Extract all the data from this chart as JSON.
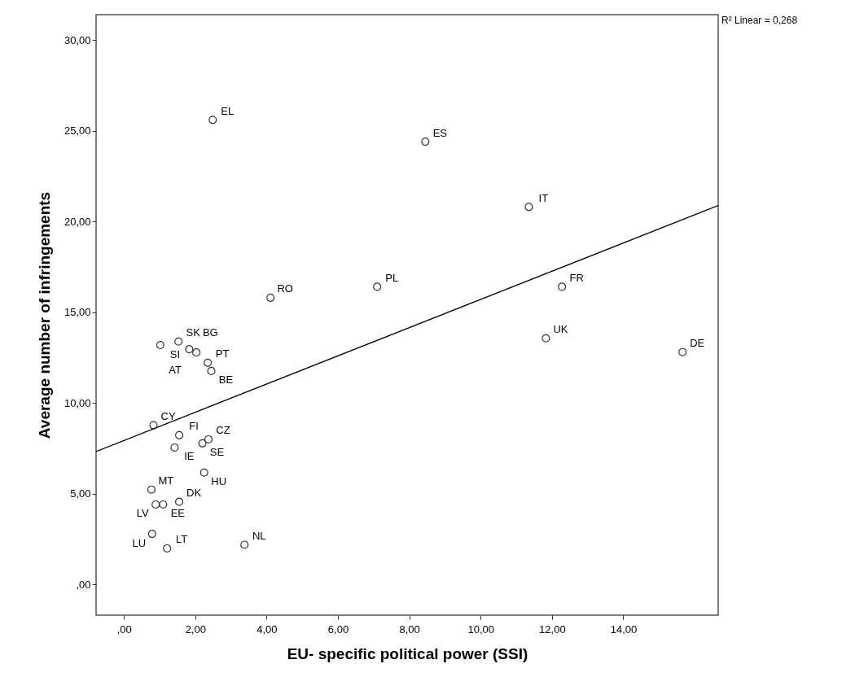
{
  "chart_data": {
    "type": "scatter",
    "xlabel": "EU- specific political power (SSI)",
    "ylabel": "Average number of infringements",
    "xlim": [
      -0.78,
      16.66
    ],
    "ylim": [
      -1.7,
      31.4
    ],
    "xticks": [
      {
        "value": 0,
        "label": ",00"
      },
      {
        "value": 2,
        "label": "2,00"
      },
      {
        "value": 4,
        "label": "4,00"
      },
      {
        "value": 6,
        "label": "6,00"
      },
      {
        "value": 8,
        "label": "8,00"
      },
      {
        "value": 10,
        "label": "10,00"
      },
      {
        "value": 12,
        "label": "12,00"
      },
      {
        "value": 14,
        "label": "14,00"
      }
    ],
    "yticks": [
      {
        "value": 0,
        "label": ",00"
      },
      {
        "value": 5,
        "label": "5,00"
      },
      {
        "value": 10,
        "label": "10,00"
      },
      {
        "value": 15,
        "label": "15,00"
      },
      {
        "value": 20,
        "label": "20,00"
      },
      {
        "value": 25,
        "label": "25,00"
      },
      {
        "value": 30,
        "label": "30,00"
      }
    ],
    "grid": false,
    "marker": "circle",
    "series": [
      {
        "type": "scatter",
        "color": "#333333",
        "x": [
          2.49,
          8.45,
          11.35,
          12.28,
          11.83,
          15.66,
          7.1,
          4.11,
          1.53,
          1.02,
          1.83,
          2.03,
          2.35,
          2.45,
          0.83,
          1.55,
          1.42,
          2.37,
          2.2,
          2.25,
          0.77,
          0.89,
          1.1,
          1.55,
          0.79,
          1.21,
          3.38
        ],
        "values": [
          25.6,
          24.4,
          20.8,
          16.4,
          13.56,
          12.8,
          16.4,
          15.8,
          13.38,
          13.19,
          12.96,
          12.78,
          12.21,
          11.76,
          8.77,
          8.22,
          7.54,
          7.99,
          7.77,
          6.16,
          5.22,
          4.4,
          4.4,
          4.55,
          2.78,
          1.98,
          2.18
        ]
      },
      {
        "type": "line",
        "color": "#000000",
        "x": [
          -0.78,
          16.66
        ],
        "values": [
          7.32,
          20.88
        ],
        "marker": "none"
      }
    ],
    "annotations": [
      {
        "text": "EL",
        "x": 2.49,
        "y": 25.6
      },
      {
        "text": "ES",
        "x": 8.45,
        "y": 24.4
      },
      {
        "text": "IT",
        "x": 11.35,
        "y": 20.8
      },
      {
        "text": "FR",
        "x": 12.28,
        "y": 16.4
      },
      {
        "text": "UK",
        "x": 11.83,
        "y": 13.56
      },
      {
        "text": "DE",
        "x": 15.66,
        "y": 12.8
      },
      {
        "text": "PL",
        "x": 7.1,
        "y": 16.4
      },
      {
        "text": "RO",
        "x": 4.11,
        "y": 15.8
      },
      {
        "text": "SK",
        "x": 1.53,
        "y": 13.38
      },
      {
        "text": "SI",
        "x": 1.02,
        "y": 13.19
      },
      {
        "text": "BG",
        "x": 1.83,
        "y": 12.96
      },
      {
        "text": "AT",
        "x": 2.03,
        "y": 12.78
      },
      {
        "text": "PT",
        "x": 2.35,
        "y": 12.21
      },
      {
        "text": "BE",
        "x": 2.45,
        "y": 11.76
      },
      {
        "text": "CY",
        "x": 0.83,
        "y": 8.77
      },
      {
        "text": "FI",
        "x": 1.55,
        "y": 8.22
      },
      {
        "text": "IE",
        "x": 1.42,
        "y": 7.54
      },
      {
        "text": "CZ",
        "x": 2.37,
        "y": 7.99
      },
      {
        "text": "SE",
        "x": 2.2,
        "y": 7.77
      },
      {
        "text": "HU",
        "x": 2.25,
        "y": 6.16
      },
      {
        "text": "MT",
        "x": 0.77,
        "y": 5.22
      },
      {
        "text": "LV",
        "x": 0.89,
        "y": 4.4
      },
      {
        "text": "EE",
        "x": 1.1,
        "y": 4.4
      },
      {
        "text": "DK",
        "x": 1.55,
        "y": 4.55
      },
      {
        "text": "LU",
        "x": 0.79,
        "y": 2.78
      },
      {
        "text": "LT",
        "x": 1.21,
        "y": 1.98
      },
      {
        "text": "NL",
        "x": 3.38,
        "y": 2.18
      },
      "R² Linear = 0,268"
    ]
  }
}
